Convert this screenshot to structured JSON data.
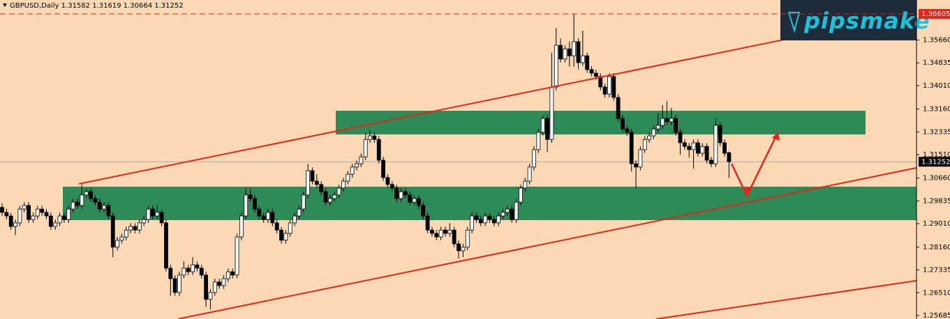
{
  "chart_data": {
    "type": "candlestick",
    "header": "GBPUSD,Daily  1.31582 1.31619 1.30664 1.31252",
    "logo": "pipsmake",
    "ylim": [
      1.25559,
      1.37109
    ],
    "yticks": [
      {
        "value": 1.3566,
        "label": "1.35660"
      },
      1.34835,
      {
        "value": 1.3401,
        "label": "1.34010"
      },
      {
        "value": 1.3316,
        "label": "1.33160"
      },
      1.32335,
      {
        "value": 1.3151,
        "label": "1.31510"
      },
      {
        "value": 1.3066,
        "label": "1.30660"
      },
      1.29835,
      {
        "value": 1.2901,
        "label": "1.29010"
      },
      {
        "value": 1.2816,
        "label": "1.28160"
      },
      1.27335,
      {
        "value": 1.2651,
        "label": "1.26510"
      },
      1.25685
    ],
    "level_price": 1.36605,
    "last_price": 1.31252,
    "up_color": "#ffffff",
    "down_color": "#000000",
    "zone_color": "#2e8b57",
    "line_color": "#e8231a",
    "ohlc": [
      [
        1.296,
        1.2975,
        1.293,
        1.2942
      ],
      [
        1.2942,
        1.2955,
        1.2917,
        1.2929
      ],
      [
        1.2929,
        1.294,
        1.2879,
        1.2891
      ],
      [
        1.2891,
        1.2916,
        1.286,
        1.2904
      ],
      [
        1.2904,
        1.2966,
        1.2892,
        1.2954
      ],
      [
        1.2954,
        1.2979,
        1.2942,
        1.2967
      ],
      [
        1.2967,
        1.2979,
        1.2904,
        1.2916
      ],
      [
        1.2916,
        1.2941,
        1.2904,
        1.2929
      ],
      [
        1.2929,
        1.2966,
        1.2917,
        1.2954
      ],
      [
        1.2954,
        1.2966,
        1.293,
        1.2942
      ],
      [
        1.2942,
        1.2954,
        1.2917,
        1.2929
      ],
      [
        1.2929,
        1.2941,
        1.2879,
        1.2891
      ],
      [
        1.2891,
        1.2916,
        1.2879,
        1.2904
      ],
      [
        1.2904,
        1.2941,
        1.2892,
        1.2929
      ],
      [
        1.2929,
        1.2941,
        1.2904,
        1.2916
      ],
      [
        1.2916,
        1.2966,
        1.2904,
        1.2954
      ],
      [
        1.2954,
        1.2991,
        1.2942,
        1.2979
      ],
      [
        1.2979,
        1.2991,
        1.2955,
        1.2967
      ],
      [
        1.2967,
        1.3043,
        1.2955,
        1.3005
      ],
      [
        1.3005,
        1.303,
        1.2993,
        1.3017
      ],
      [
        1.3017,
        1.3029,
        1.298,
        1.2992
      ],
      [
        1.2992,
        1.3004,
        1.2967,
        1.2979
      ],
      [
        1.2979,
        1.2991,
        1.2942,
        1.2954
      ],
      [
        1.2954,
        1.2979,
        1.2942,
        1.2967
      ],
      [
        1.2967,
        1.2979,
        1.2917,
        1.2929
      ],
      [
        1.2929,
        1.2941,
        1.278,
        1.2816
      ],
      [
        1.2816,
        1.2853,
        1.2804,
        1.2841
      ],
      [
        1.2841,
        1.2865,
        1.2829,
        1.2853
      ],
      [
        1.2853,
        1.289,
        1.2841,
        1.2878
      ],
      [
        1.2878,
        1.2903,
        1.2866,
        1.2891
      ],
      [
        1.2891,
        1.2903,
        1.2866,
        1.2878
      ],
      [
        1.2878,
        1.2916,
        1.2866,
        1.2904
      ],
      [
        1.2904,
        1.2928,
        1.2892,
        1.2916
      ],
      [
        1.2916,
        1.2966,
        1.2904,
        1.2954
      ],
      [
        1.2954,
        1.2966,
        1.2917,
        1.2929
      ],
      [
        1.2929,
        1.297,
        1.2917,
        1.2942
      ],
      [
        1.2942,
        1.2954,
        1.2892,
        1.2904
      ],
      [
        1.2904,
        1.2916,
        1.2728,
        1.274
      ],
      [
        1.274,
        1.2752,
        1.264,
        1.2702
      ],
      [
        1.2702,
        1.2714,
        1.264,
        1.2652
      ],
      [
        1.2652,
        1.2727,
        1.264,
        1.2715
      ],
      [
        1.2715,
        1.2765,
        1.2703,
        1.274
      ],
      [
        1.274,
        1.2752,
        1.2715,
        1.2727
      ],
      [
        1.2727,
        1.278,
        1.2715,
        1.2752
      ],
      [
        1.2752,
        1.2764,
        1.2728,
        1.274
      ],
      [
        1.274,
        1.2752,
        1.2703,
        1.2715
      ],
      [
        1.2715,
        1.2727,
        1.26,
        1.2627
      ],
      [
        1.2627,
        1.2664,
        1.259,
        1.2652
      ],
      [
        1.2652,
        1.2702,
        1.264,
        1.269
      ],
      [
        1.269,
        1.2702,
        1.2665,
        1.2677
      ],
      [
        1.2677,
        1.2714,
        1.2665,
        1.2702
      ],
      [
        1.2702,
        1.2739,
        1.269,
        1.2727
      ],
      [
        1.2727,
        1.2739,
        1.2703,
        1.2715
      ],
      [
        1.2715,
        1.2865,
        1.2703,
        1.2853
      ],
      [
        1.2853,
        1.2941,
        1.2841,
        1.2929
      ],
      [
        1.2929,
        1.303,
        1.2917,
        1.3005
      ],
      [
        1.3005,
        1.303,
        1.298,
        1.2992
      ],
      [
        1.2992,
        1.3004,
        1.2942,
        1.2954
      ],
      [
        1.2954,
        1.2966,
        1.2917,
        1.2929
      ],
      [
        1.2929,
        1.2941,
        1.2904,
        1.2916
      ],
      [
        1.2916,
        1.2954,
        1.2904,
        1.2942
      ],
      [
        1.2942,
        1.2954,
        1.2892,
        1.2904
      ],
      [
        1.2904,
        1.2916,
        1.2866,
        1.2878
      ],
      [
        1.2878,
        1.289,
        1.2829,
        1.2841
      ],
      [
        1.2841,
        1.2878,
        1.2829,
        1.2866
      ],
      [
        1.2866,
        1.2916,
        1.2854,
        1.2904
      ],
      [
        1.2904,
        1.2941,
        1.2892,
        1.2929
      ],
      [
        1.2929,
        1.2966,
        1.2917,
        1.2954
      ],
      [
        1.2954,
        1.3017,
        1.2942,
        1.3005
      ],
      [
        1.3005,
        1.3118,
        1.2993,
        1.3093
      ],
      [
        1.3093,
        1.3105,
        1.3043,
        1.3055
      ],
      [
        1.3055,
        1.308,
        1.3031,
        1.3043
      ],
      [
        1.3043,
        1.3055,
        1.3005,
        1.3017
      ],
      [
        1.3017,
        1.3029,
        1.2967,
        1.2979
      ],
      [
        1.2979,
        1.3004,
        1.2967,
        1.2992
      ],
      [
        1.2992,
        1.3017,
        1.298,
        1.3005
      ],
      [
        1.3005,
        1.3042,
        1.2993,
        1.303
      ],
      [
        1.303,
        1.3067,
        1.3018,
        1.3055
      ],
      [
        1.3055,
        1.3092,
        1.3043,
        1.308
      ],
      [
        1.308,
        1.3118,
        1.3068,
        1.3106
      ],
      [
        1.3106,
        1.313,
        1.3094,
        1.3118
      ],
      [
        1.3118,
        1.3155,
        1.3106,
        1.3143
      ],
      [
        1.3143,
        1.323,
        1.3131,
        1.3206
      ],
      [
        1.3206,
        1.324,
        1.3194,
        1.3219
      ],
      [
        1.3219,
        1.3231,
        1.3194,
        1.3206
      ],
      [
        1.3206,
        1.3218,
        1.3119,
        1.3131
      ],
      [
        1.3131,
        1.3143,
        1.3056,
        1.3068
      ],
      [
        1.3068,
        1.308,
        1.3031,
        1.3043
      ],
      [
        1.3043,
        1.3055,
        1.3018,
        1.303
      ],
      [
        1.303,
        1.3042,
        1.298,
        1.2992
      ],
      [
        1.2992,
        1.3029,
        1.298,
        1.3017
      ],
      [
        1.3017,
        1.3029,
        1.2993,
        1.3005
      ],
      [
        1.3005,
        1.3017,
        1.2967,
        1.2979
      ],
      [
        1.2979,
        1.3004,
        1.2967,
        1.2992
      ],
      [
        1.2992,
        1.3004,
        1.2955,
        1.2967
      ],
      [
        1.2967,
        1.2979,
        1.2917,
        1.2929
      ],
      [
        1.2929,
        1.2941,
        1.2866,
        1.2878
      ],
      [
        1.2878,
        1.289,
        1.2854,
        1.2866
      ],
      [
        1.2866,
        1.2878,
        1.2841,
        1.2853
      ],
      [
        1.2853,
        1.289,
        1.2841,
        1.2878
      ],
      [
        1.2878,
        1.289,
        1.2854,
        1.2866
      ],
      [
        1.2866,
        1.2903,
        1.2854,
        1.2878
      ],
      [
        1.2878,
        1.289,
        1.2816,
        1.2828
      ],
      [
        1.2828,
        1.284,
        1.2775,
        1.2803
      ],
      [
        1.2803,
        1.2828,
        1.278,
        1.2816
      ],
      [
        1.2816,
        1.289,
        1.2804,
        1.2878
      ],
      [
        1.2878,
        1.2941,
        1.2866,
        1.2929
      ],
      [
        1.2929,
        1.2941,
        1.2904,
        1.2916
      ],
      [
        1.2916,
        1.2928,
        1.2892,
        1.2904
      ],
      [
        1.2904,
        1.2941,
        1.2892,
        1.2929
      ],
      [
        1.2929,
        1.2941,
        1.2904,
        1.2916
      ],
      [
        1.2916,
        1.2928,
        1.2892,
        1.2904
      ],
      [
        1.2904,
        1.2941,
        1.2892,
        1.2929
      ],
      [
        1.2929,
        1.2954,
        1.2917,
        1.2942
      ],
      [
        1.2942,
        1.2966,
        1.293,
        1.2954
      ],
      [
        1.2954,
        1.2966,
        1.2904,
        1.2916
      ],
      [
        1.2916,
        1.2991,
        1.2904,
        1.2979
      ],
      [
        1.2979,
        1.3042,
        1.2967,
        1.303
      ],
      [
        1.303,
        1.3067,
        1.3018,
        1.3055
      ],
      [
        1.3055,
        1.3118,
        1.3043,
        1.3106
      ],
      [
        1.3106,
        1.3181,
        1.3094,
        1.3169
      ],
      [
        1.3169,
        1.3244,
        1.3157,
        1.3232
      ],
      [
        1.3232,
        1.3294,
        1.322,
        1.3282
      ],
      [
        1.3282,
        1.3294,
        1.316,
        1.3206
      ],
      [
        1.3206,
        1.352,
        1.3194,
        1.3396
      ],
      [
        1.3396,
        1.361,
        1.3384,
        1.3547
      ],
      [
        1.3547,
        1.3572,
        1.3485,
        1.3497
      ],
      [
        1.3497,
        1.3546,
        1.3485,
        1.3534
      ],
      [
        1.3534,
        1.356,
        1.347,
        1.3509
      ],
      [
        1.3509,
        1.3661,
        1.347,
        1.356
      ],
      [
        1.356,
        1.3572,
        1.346,
        1.3484
      ],
      [
        1.3484,
        1.36,
        1.3472,
        1.3509
      ],
      [
        1.3509,
        1.3521,
        1.3447,
        1.3459
      ],
      [
        1.3459,
        1.3471,
        1.3434,
        1.3446
      ],
      [
        1.3446,
        1.3458,
        1.3422,
        1.3434
      ],
      [
        1.3434,
        1.3446,
        1.3384,
        1.3396
      ],
      [
        1.3396,
        1.3408,
        1.3358,
        1.337
      ],
      [
        1.337,
        1.3446,
        1.3358,
        1.3434
      ],
      [
        1.3434,
        1.3446,
        1.3346,
        1.3358
      ],
      [
        1.3358,
        1.337,
        1.327,
        1.3282
      ],
      [
        1.3282,
        1.3294,
        1.3232,
        1.3244
      ],
      [
        1.3244,
        1.3256,
        1.322,
        1.3232
      ],
      [
        1.3232,
        1.3244,
        1.309,
        1.3118
      ],
      [
        1.3118,
        1.313,
        1.303,
        1.3106
      ],
      [
        1.3106,
        1.3181,
        1.3094,
        1.3169
      ],
      [
        1.3169,
        1.3218,
        1.3157,
        1.3206
      ],
      [
        1.3206,
        1.3231,
        1.3194,
        1.3219
      ],
      [
        1.3219,
        1.3256,
        1.3207,
        1.3244
      ],
      [
        1.3244,
        1.33,
        1.3232,
        1.3257
      ],
      [
        1.3257,
        1.333,
        1.3245,
        1.3282
      ],
      [
        1.3282,
        1.3345,
        1.3258,
        1.327
      ],
      [
        1.327,
        1.332,
        1.3258,
        1.3282
      ],
      [
        1.3282,
        1.3294,
        1.322,
        1.3232
      ],
      [
        1.3232,
        1.3244,
        1.315,
        1.3194
      ],
      [
        1.3194,
        1.3206,
        1.3169,
        1.3181
      ],
      [
        1.3181,
        1.3193,
        1.314,
        1.3169
      ],
      [
        1.3169,
        1.3206,
        1.31,
        1.3194
      ],
      [
        1.3194,
        1.3206,
        1.3144,
        1.3156
      ],
      [
        1.3156,
        1.3193,
        1.3144,
        1.3181
      ],
      [
        1.3181,
        1.3193,
        1.3119,
        1.3131
      ],
      [
        1.3131,
        1.3143,
        1.3106,
        1.3118
      ],
      [
        1.3118,
        1.3282,
        1.3106,
        1.3257
      ],
      [
        1.3257,
        1.3269,
        1.3182,
        1.3194
      ],
      [
        1.3194,
        1.3206,
        1.3144,
        1.3156
      ],
      [
        1.31582,
        1.31619,
        1.30664,
        1.31252
      ]
    ]
  }
}
